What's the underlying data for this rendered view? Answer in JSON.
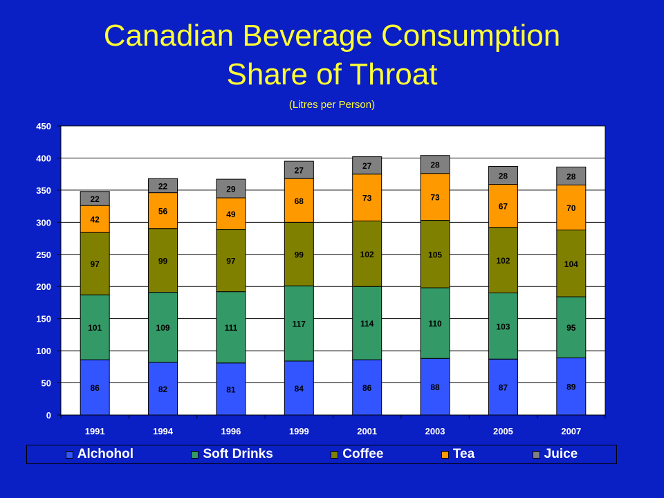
{
  "colors": {
    "background": "#0a1fc4",
    "title": "#ffff33",
    "axis_text": "#ffffff",
    "plot_bg": "#ffffff",
    "gridline": "#000000"
  },
  "chart_data": {
    "type": "bar",
    "stacked": true,
    "title": "Canadian Beverage Consumption",
    "title_line2": "Share of Throat",
    "subtitle": "(Litres per Person)",
    "xlabel": "",
    "ylabel": "",
    "ylim": [
      0,
      450
    ],
    "yticks": [
      "0",
      "50",
      "100",
      "150",
      "200",
      "250",
      "300",
      "350",
      "400",
      "450"
    ],
    "grid": true,
    "legend_position": "bottom",
    "categories": [
      "1991",
      "1994",
      "1996",
      "1999",
      "2001",
      "2003",
      "2005",
      "2007"
    ],
    "series": [
      {
        "name": "Alchohol",
        "color": "#3355ff",
        "values": [
          86,
          82,
          81,
          84,
          86,
          88,
          87,
          89
        ]
      },
      {
        "name": "Soft Drinks",
        "color": "#339966",
        "values": [
          101,
          109,
          111,
          117,
          114,
          110,
          103,
          95
        ]
      },
      {
        "name": "Coffee",
        "color": "#808000",
        "values": [
          97,
          99,
          97,
          99,
          102,
          105,
          102,
          104
        ]
      },
      {
        "name": "Tea",
        "color": "#ff9900",
        "values": [
          42,
          56,
          49,
          68,
          73,
          73,
          67,
          70
        ]
      },
      {
        "name": "Juice",
        "color": "#808080",
        "values": [
          22,
          22,
          29,
          27,
          27,
          28,
          28,
          28
        ]
      }
    ]
  }
}
